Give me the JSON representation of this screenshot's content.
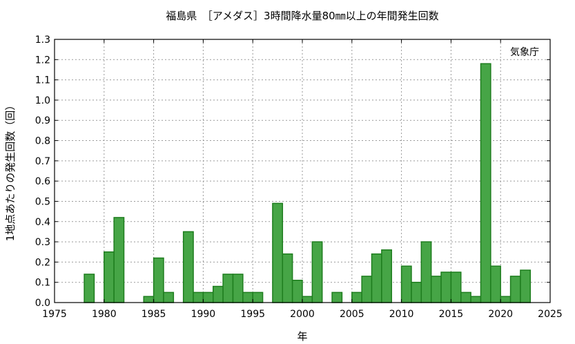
{
  "chart_data": {
    "type": "bar",
    "title": "福島県　［アメダス］3時間降水量80㎜以上の年間発生回数",
    "xlabel": "年",
    "ylabel": "1地点あたりの発生回数（回）",
    "annotation": "気象庁",
    "xlim": [
      1975,
      2025
    ],
    "ylim": [
      0,
      1.3
    ],
    "xticks": [
      "1975",
      "1980",
      "1985",
      "1990",
      "1995",
      "2000",
      "2005",
      "2010",
      "2015",
      "2020",
      "2025"
    ],
    "yticks": [
      "0.0",
      "0.1",
      "0.2",
      "0.3",
      "0.4",
      "0.5",
      "0.6",
      "0.7",
      "0.8",
      "0.9",
      "1.0",
      "1.1",
      "1.2",
      "1.3"
    ],
    "grid": true,
    "bar_color": "#46a546",
    "bar_edge_color": "#1e7d1e",
    "x": [
      1979,
      1981,
      1982,
      1985,
      1986,
      1987,
      1989,
      1990,
      1991,
      1992,
      1993,
      1994,
      1995,
      1996,
      1998,
      1999,
      2000,
      2001,
      2002,
      2004,
      2006,
      2007,
      2008,
      2009,
      2011,
      2012,
      2013,
      2014,
      2015,
      2016,
      2017,
      2018,
      2019,
      2020,
      2021,
      2022,
      2023
    ],
    "values": [
      0.14,
      0.25,
      0.42,
      0.03,
      0.22,
      0.05,
      0.35,
      0.05,
      0.05,
      0.08,
      0.14,
      0.14,
      0.05,
      0.05,
      0.49,
      0.24,
      0.11,
      0.03,
      0.3,
      0.05,
      0.05,
      0.13,
      0.24,
      0.26,
      0.18,
      0.1,
      0.3,
      0.13,
      0.15,
      0.15,
      0.05,
      0.03,
      1.18,
      0.18,
      0.03,
      0.13,
      0.16
    ]
  }
}
